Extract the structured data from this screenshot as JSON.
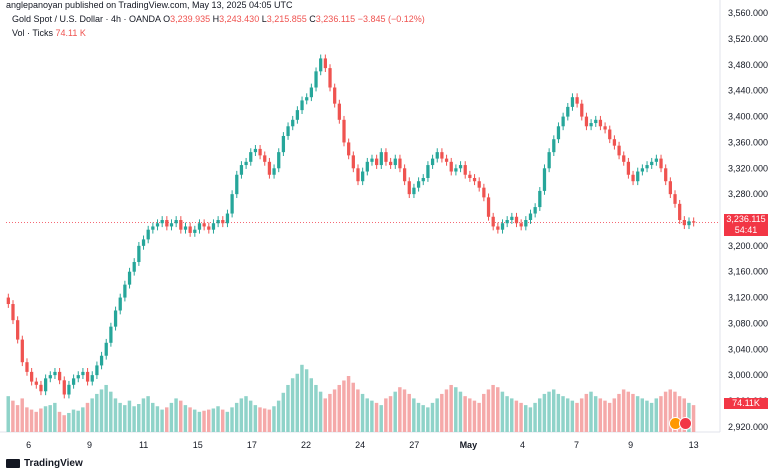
{
  "header": {
    "publisher": "anglepanoyan published on TradingView.com, May 13, 2025 04:05 UTC",
    "symbol": "Gold Spot / U.S. Dollar · 4h · OANDA",
    "ohlc": {
      "o_label": "O",
      "o_value": "3,239.935",
      "h_label": "H",
      "h_value": "3,243.430",
      "l_label": "L",
      "l_value": "3,215.855",
      "c_label": "C",
      "c_value": "3,236.115",
      "change": "−3.845 (−0.12%)"
    },
    "volume_label": "Vol · Ticks",
    "volume_value": "74.11 K"
  },
  "price_tag": {
    "price": "3,236.115",
    "countdown": "54:41"
  },
  "volume_tag": "74.11K",
  "brand": "TradingView",
  "colors": {
    "up": "#26a69a",
    "down": "#ef5350",
    "up_volume": "#8fd3c9",
    "down_volume": "#f5a9a9",
    "last_price_line": "#f23645"
  },
  "chart_data": {
    "type": "candlestick",
    "timeframe": "4h",
    "y_axis_ticks": [
      "3,560.000",
      "3,520.000",
      "3,480.000",
      "3,440.000",
      "3,400.000",
      "3,360.000",
      "3,320.000",
      "3,280.000",
      "3,240.000",
      "3,200.000",
      "3,160.000",
      "3,120.000",
      "3,080.000",
      "3,040.000",
      "3,000.000",
      "2,960.000",
      "2,920.000"
    ],
    "ylim": [
      2912,
      3568
    ],
    "x_axis_ticks": [
      "6",
      "9",
      "11",
      "15",
      "17",
      "22",
      "24",
      "27",
      "May",
      "4",
      "7",
      "9",
      "13"
    ],
    "last_price": 3236.115,
    "closes": [
      3110,
      3085,
      3055,
      3020,
      3005,
      2990,
      2985,
      2975,
      2995,
      3000,
      3005,
      2992,
      2970,
      2985,
      2995,
      3000,
      3005,
      2990,
      3000,
      3015,
      3030,
      3050,
      3075,
      3100,
      3120,
      3140,
      3160,
      3175,
      3200,
      3210,
      3225,
      3230,
      3235,
      3240,
      3230,
      3235,
      3240,
      3225,
      3230,
      3220,
      3225,
      3235,
      3230,
      3225,
      3235,
      3240,
      3235,
      3250,
      3280,
      3310,
      3325,
      3330,
      3345,
      3350,
      3340,
      3330,
      3310,
      3320,
      3345,
      3370,
      3385,
      3395,
      3410,
      3425,
      3430,
      3445,
      3470,
      3490,
      3475,
      3445,
      3420,
      3395,
      3360,
      3340,
      3320,
      3300,
      3315,
      3330,
      3335,
      3325,
      3345,
      3330,
      3325,
      3335,
      3320,
      3300,
      3280,
      3290,
      3300,
      3305,
      3325,
      3335,
      3345,
      3335,
      3330,
      3315,
      3320,
      3325,
      3310,
      3305,
      3300,
      3290,
      3275,
      3245,
      3230,
      3225,
      3235,
      3240,
      3245,
      3235,
      3230,
      3240,
      3250,
      3260,
      3285,
      3320,
      3345,
      3365,
      3385,
      3400,
      3415,
      3430,
      3420,
      3400,
      3385,
      3390,
      3395,
      3385,
      3380,
      3365,
      3355,
      3340,
      3330,
      3310,
      3300,
      3315,
      3320,
      3325,
      3330,
      3335,
      3320,
      3300,
      3280,
      3265,
      3240,
      3232,
      3238,
      3236
    ],
    "volume_max": 1000,
    "volumes": [
      320,
      280,
      240,
      300,
      220,
      200,
      180,
      210,
      230,
      240,
      260,
      180,
      150,
      170,
      200,
      190,
      220,
      260,
      300,
      340,
      380,
      420,
      360,
      300,
      260,
      240,
      280,
      230,
      250,
      300,
      320,
      260,
      230,
      200,
      220,
      260,
      300,
      280,
      240,
      220,
      200,
      180,
      190,
      200,
      210,
      230,
      200,
      180,
      220,
      260,
      300,
      320,
      280,
      240,
      220,
      210,
      200,
      230,
      280,
      350,
      420,
      480,
      520,
      600,
      560,
      480,
      420,
      360,
      300,
      340,
      380,
      420,
      460,
      500,
      440,
      380,
      340,
      300,
      280,
      260,
      240,
      300,
      320,
      360,
      400,
      380,
      340,
      300,
      260,
      240,
      220,
      260,
      300,
      340,
      380,
      420,
      400,
      360,
      320,
      300,
      280,
      260,
      340,
      380,
      420,
      400,
      360,
      320,
      300,
      280,
      260,
      240,
      220,
      260,
      300,
      340,
      360,
      380,
      340,
      320,
      300,
      280,
      260,
      300,
      340,
      360,
      320,
      300,
      280,
      260,
      300,
      340,
      380,
      360,
      340,
      320,
      300,
      280,
      260,
      300,
      320,
      360,
      380,
      360,
      320,
      300,
      260,
      240
    ],
    "xlabel": "",
    "ylabel": ""
  }
}
